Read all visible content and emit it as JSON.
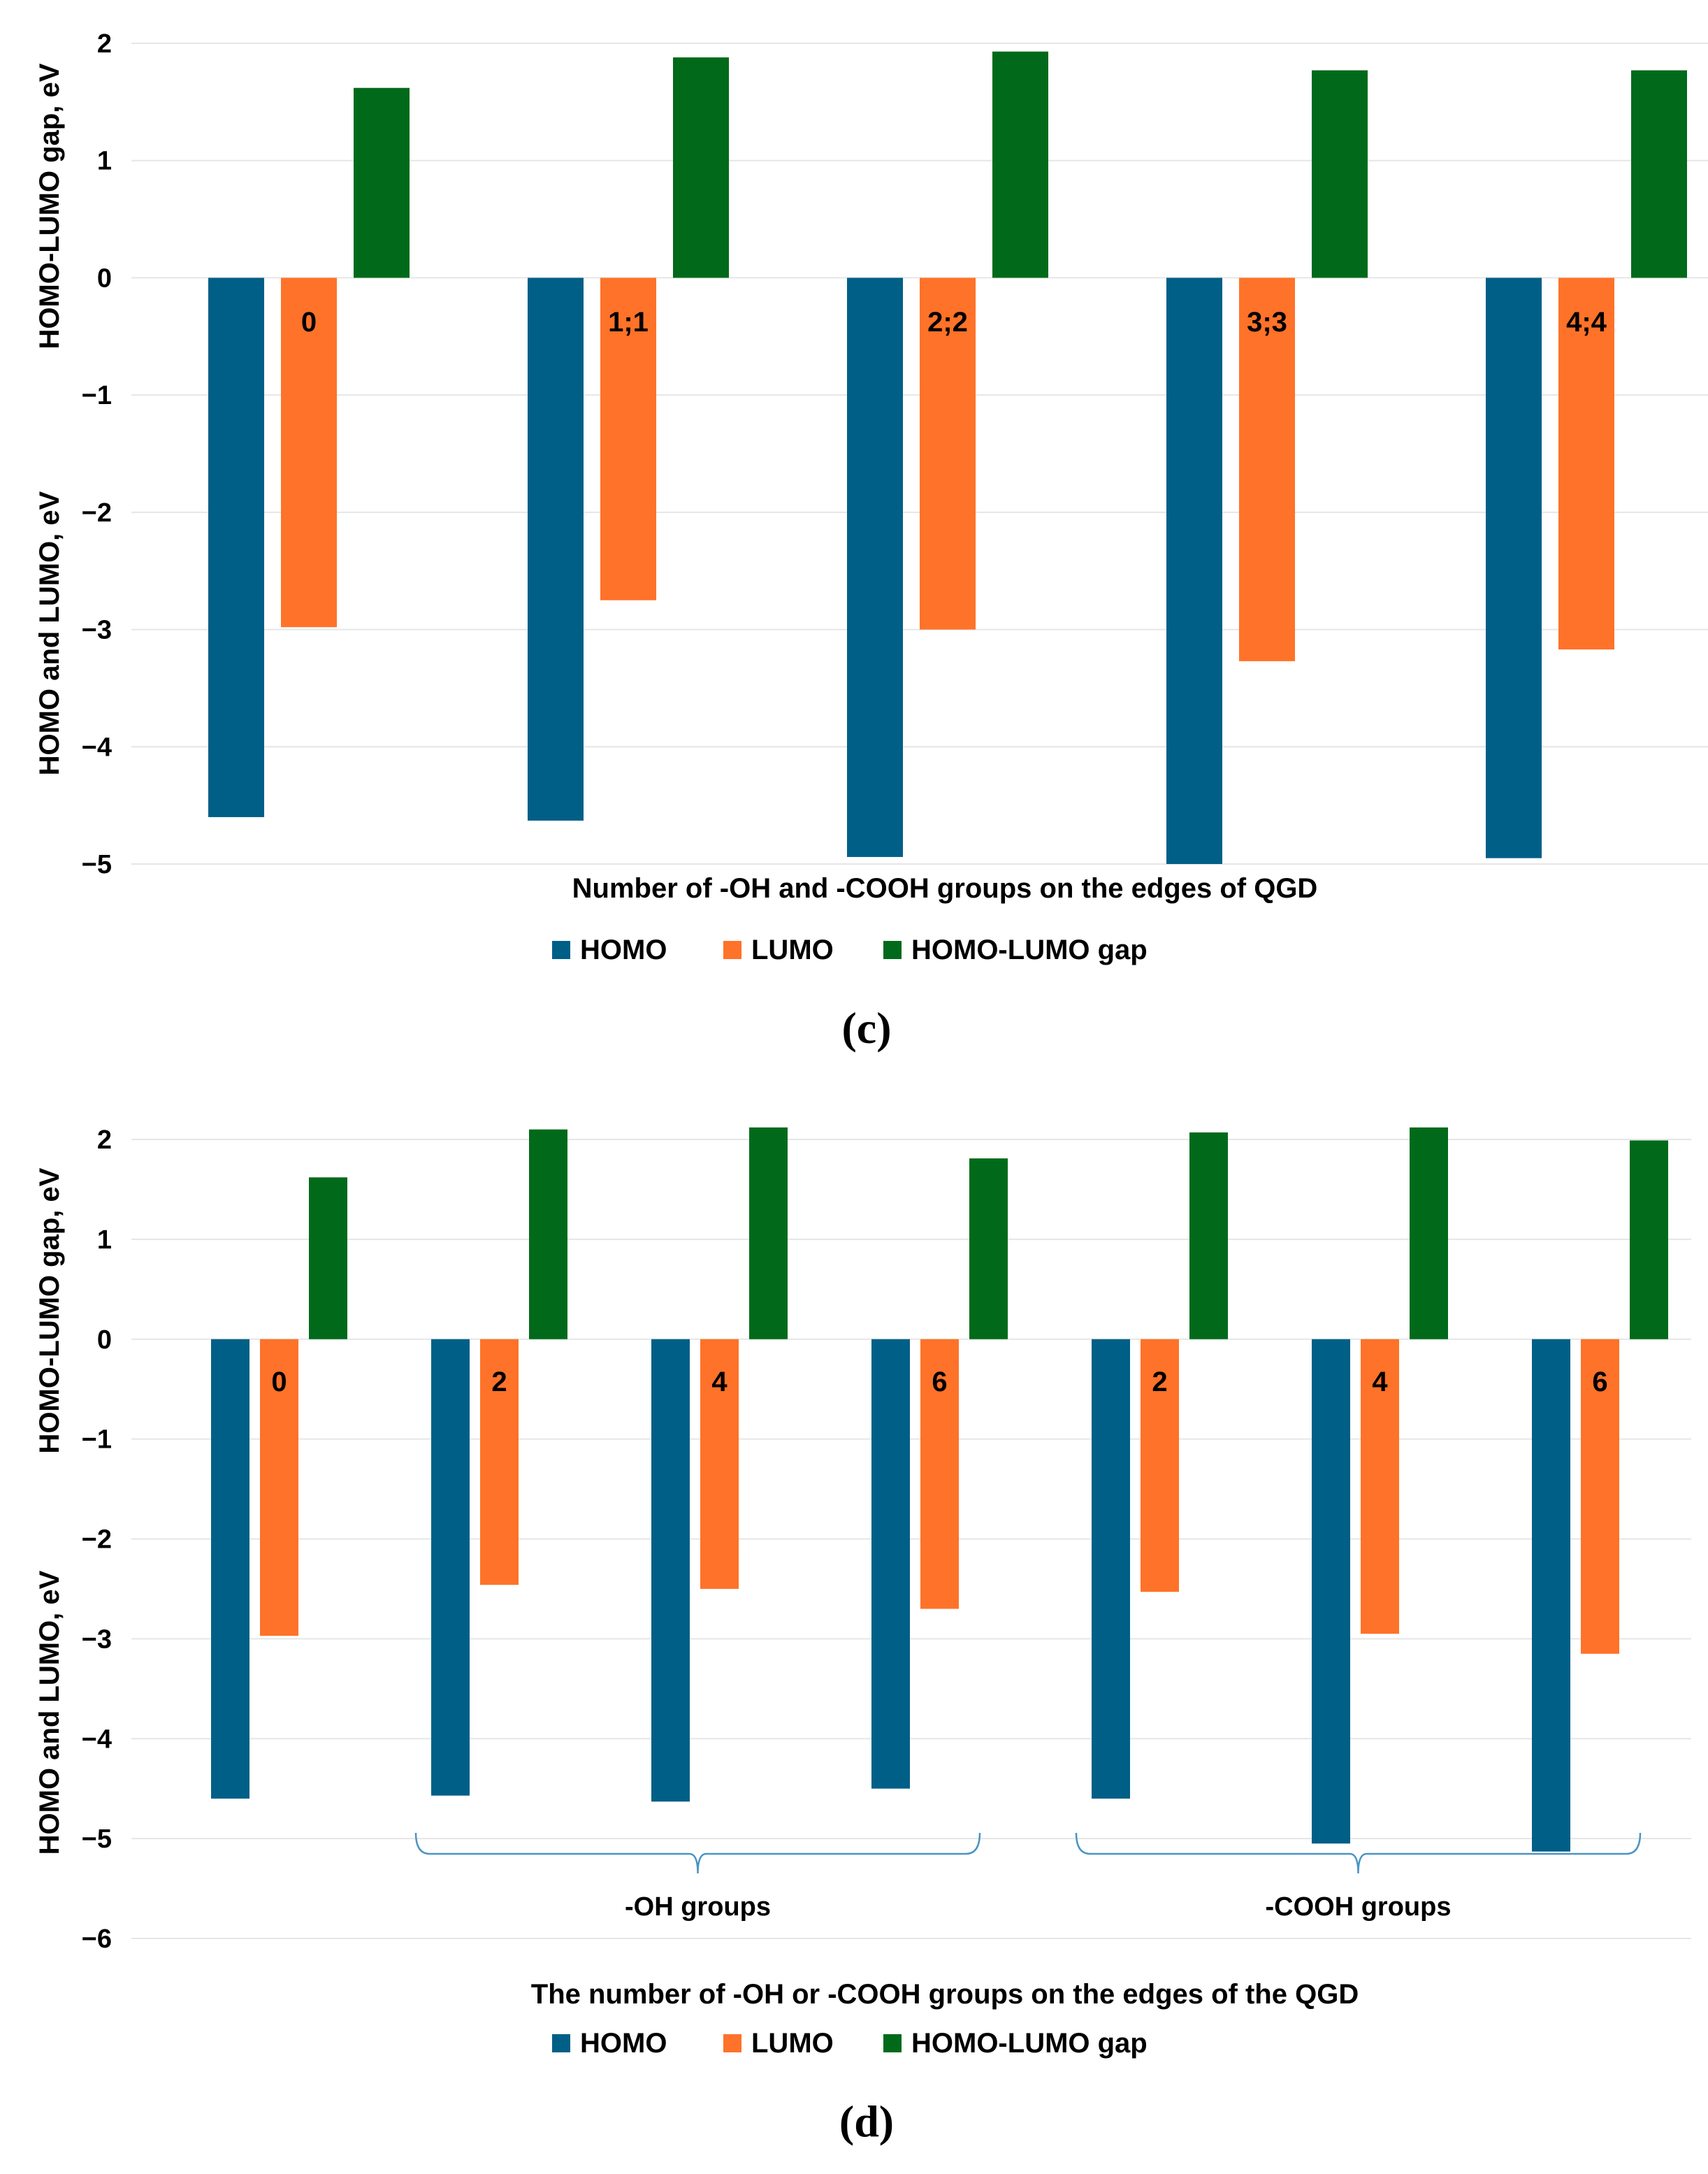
{
  "colors": {
    "homo": "#005f87",
    "lumo": "#ff7229",
    "gap": "#006a1a",
    "grid": "#e6e6e6",
    "brace": "#4a94c4",
    "text": "#000000"
  },
  "chart_data": [
    {
      "type": "bar",
      "panel_label": "(c)",
      "ylabel_top": "HOMO-LUMO gap, eV",
      "ylabel_bottom": "HOMO and LUMO, eV",
      "xlabel": "Number of -OH and -COOH groups on the edges of QGD",
      "ylim": [
        -5,
        2
      ],
      "yticks": [
        {
          "v": 2,
          "label": "2"
        },
        {
          "v": 1,
          "label": "1"
        },
        {
          "v": 0,
          "label": "0"
        },
        {
          "v": -1,
          "label": "−1"
        },
        {
          "v": -2,
          "label": "−2"
        },
        {
          "v": -3,
          "label": "−3"
        },
        {
          "v": -4,
          "label": "−4"
        },
        {
          "v": -5,
          "label": "−5"
        }
      ],
      "categories": [
        "0",
        "1;1",
        "2;2",
        "3;3",
        "4;4"
      ],
      "series": [
        {
          "name": "HOMO",
          "key": "homo",
          "values": [
            -4.6,
            -4.63,
            -4.94,
            -5.0,
            -4.95
          ]
        },
        {
          "name": "LUMO",
          "key": "lumo",
          "values": [
            -2.98,
            -2.75,
            -3.0,
            -3.27,
            -3.17
          ]
        },
        {
          "name": "HOMO-LUMO gap",
          "key": "gap",
          "values": [
            1.62,
            1.88,
            1.93,
            1.77,
            1.77
          ]
        }
      ],
      "legend": "bottom",
      "grid": true
    },
    {
      "type": "bar",
      "panel_label": "(d)",
      "ylabel_top": "HOMO-LUMO gap, eV",
      "ylabel_bottom": "HOMO and LUMO, eV",
      "xlabel": "The number of -OH or -COOH groups on the edges of the QGD",
      "ylim": [
        -6,
        2
      ],
      "yticks": [
        {
          "v": 2,
          "label": "2"
        },
        {
          "v": 1,
          "label": "1"
        },
        {
          "v": 0,
          "label": "0"
        },
        {
          "v": -1,
          "label": "−1"
        },
        {
          "v": -2,
          "label": "−2"
        },
        {
          "v": -3,
          "label": "−3"
        },
        {
          "v": -4,
          "label": "−4"
        },
        {
          "v": -5,
          "label": "−5"
        },
        {
          "v": -6,
          "label": "−6"
        }
      ],
      "categories": [
        "0",
        "2",
        "4",
        "6",
        "2",
        "4",
        "6"
      ],
      "series": [
        {
          "name": "HOMO",
          "key": "homo",
          "values": [
            -4.6,
            -4.57,
            -4.63,
            -4.5,
            -4.6,
            -5.05,
            -5.13
          ]
        },
        {
          "name": "LUMO",
          "key": "lumo",
          "values": [
            -2.97,
            -2.46,
            -2.5,
            -2.7,
            -2.53,
            -2.95,
            -3.15
          ]
        },
        {
          "name": "HOMO-LUMO gap",
          "key": "gap",
          "values": [
            1.62,
            2.1,
            2.12,
            1.81,
            2.07,
            2.12,
            1.99
          ]
        }
      ],
      "groups": [
        {
          "label": "-OH groups",
          "from": 1,
          "to": 3
        },
        {
          "label": "-COOH groups",
          "from": 4,
          "to": 6
        }
      ],
      "legend": "bottom",
      "grid": true
    }
  ]
}
